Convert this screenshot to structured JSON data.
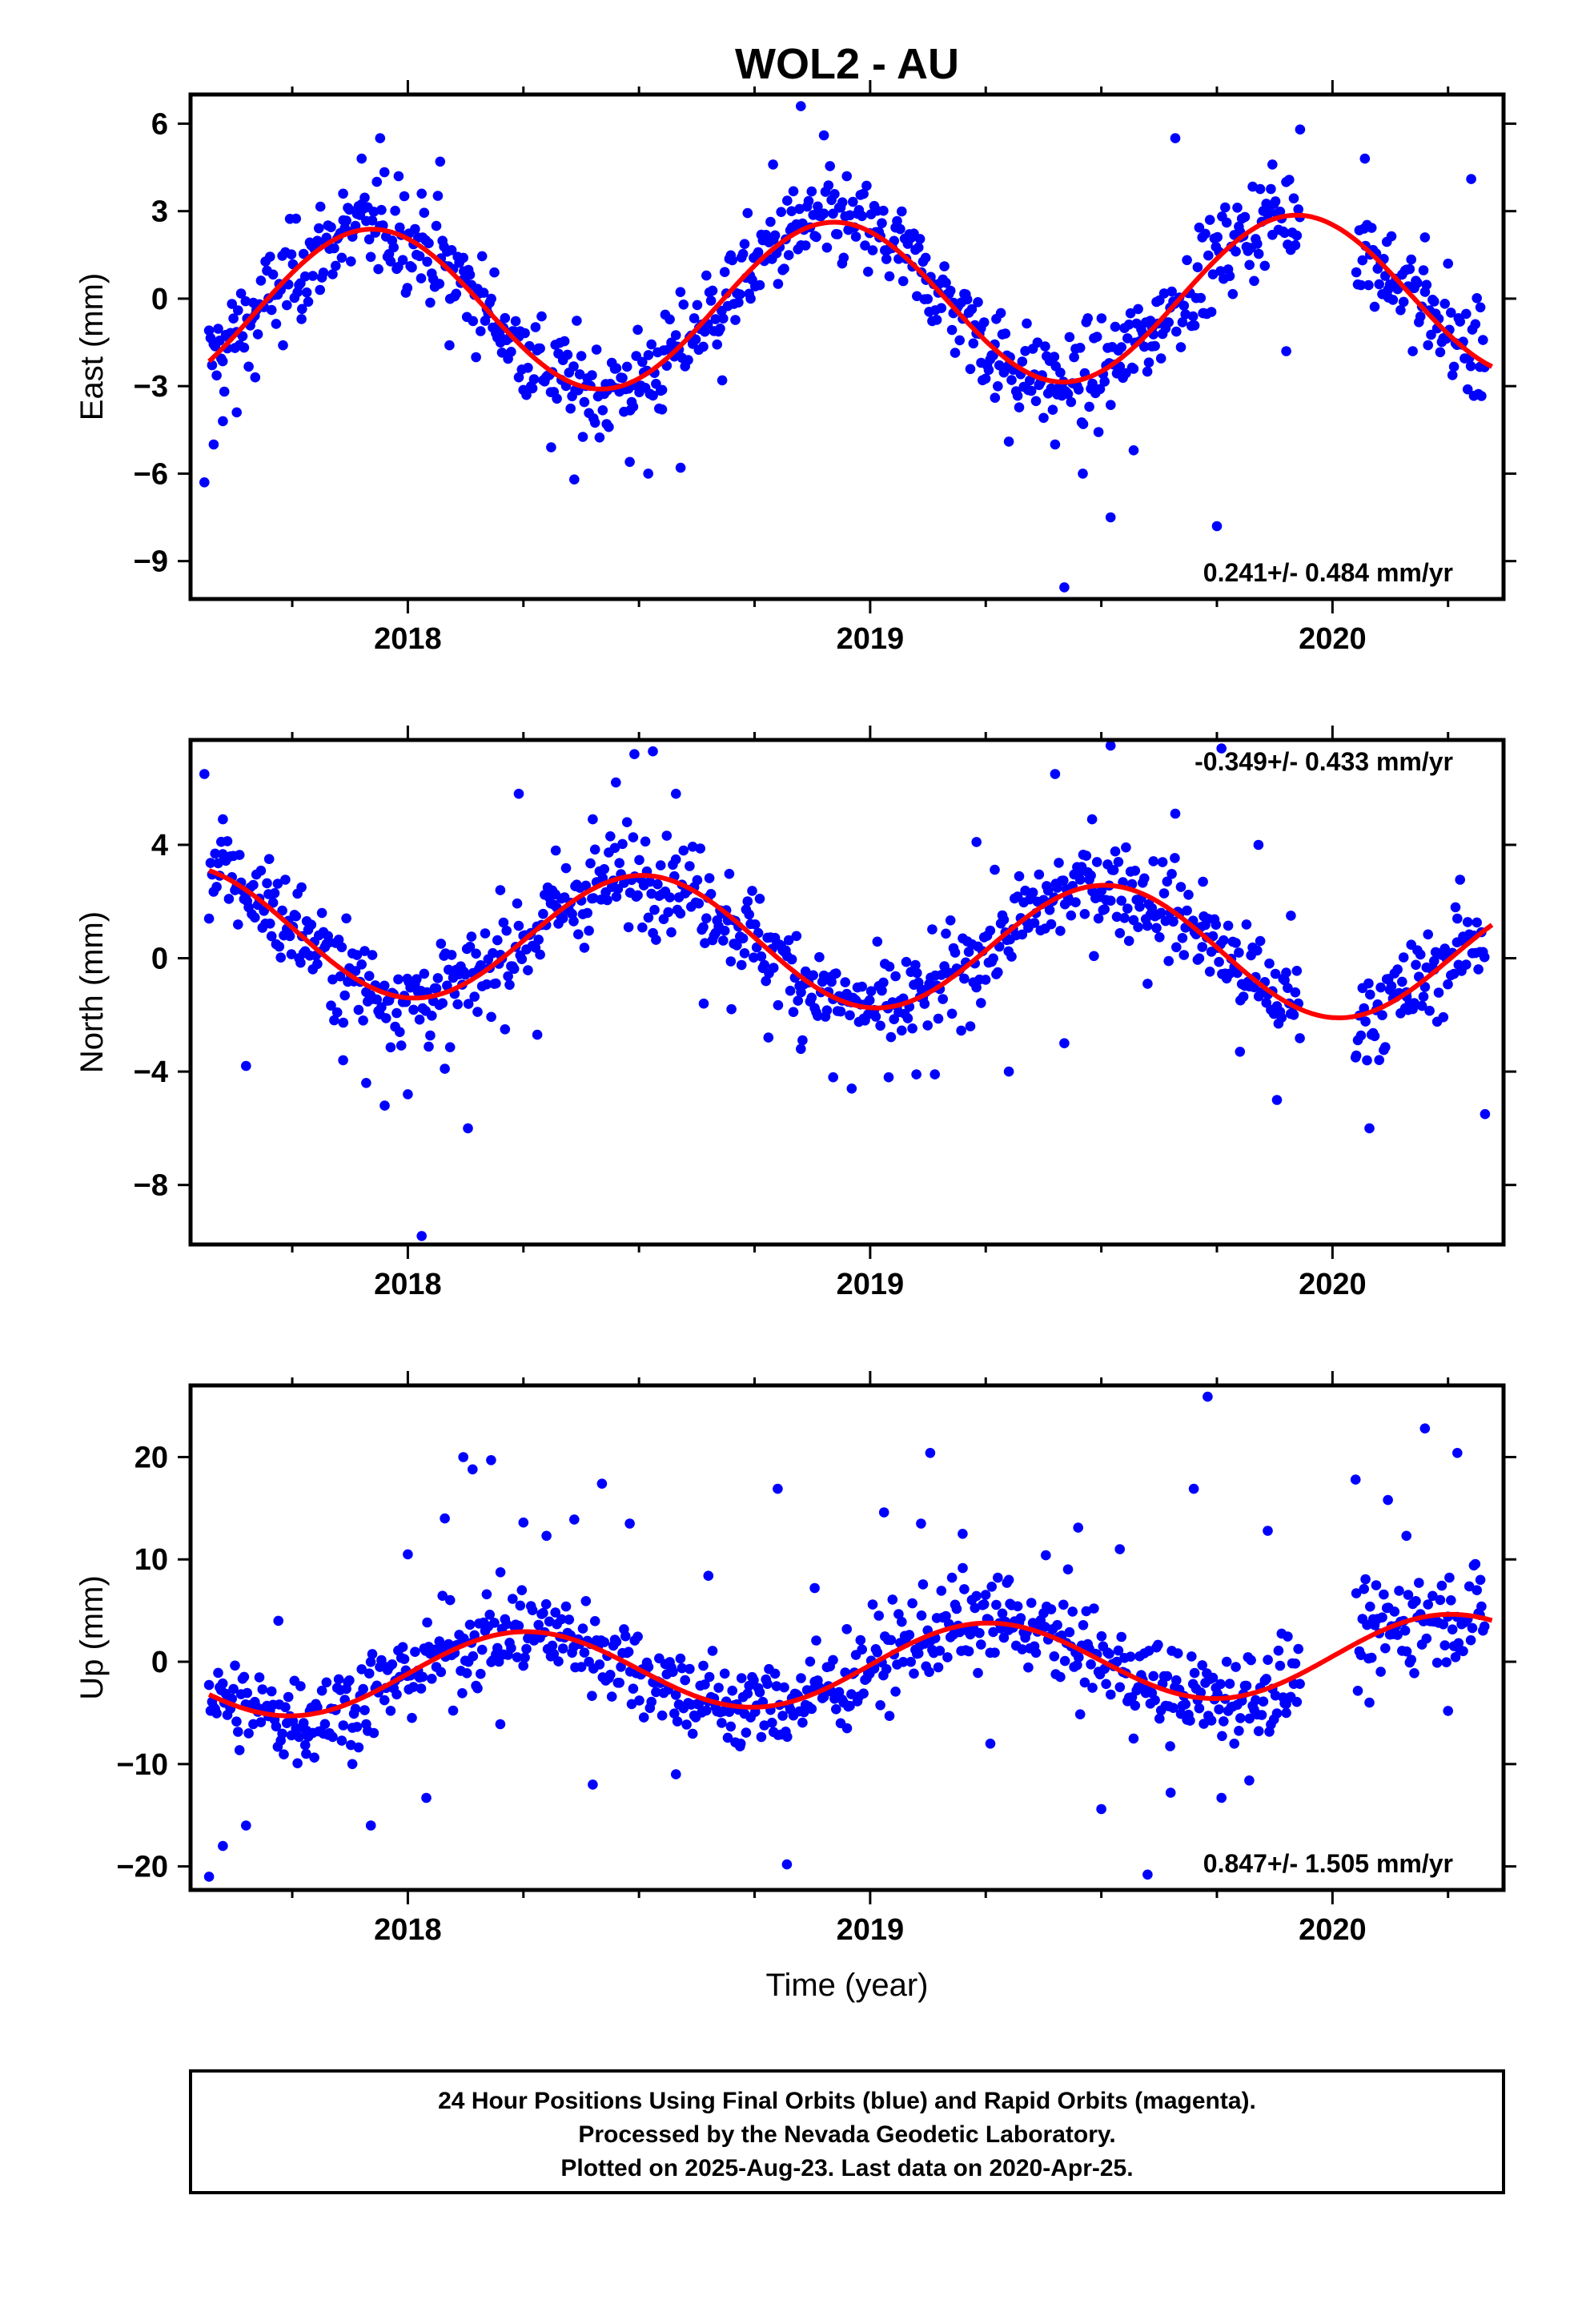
{
  "title": "WOL2 - AU",
  "xlabel": "Time (year)",
  "footer": {
    "line1": "24 Hour Positions Using Final Orbits (blue) and Rapid Orbits (magenta).",
    "line2": "Processed by the Nevada Geodetic Laboratory.",
    "line3": "Plotted on 2025-Aug-23. Last data on 2020-Apr-25."
  },
  "colors": {
    "points": "#0000ff",
    "fit": "#ff0000",
    "frame": "#000000"
  },
  "chart_data": [
    {
      "type": "scatter",
      "ylabel": "East (mm)",
      "rate_label": "0.241+/- 0.484 mm/yr",
      "xlim": [
        2017.53,
        2020.37
      ],
      "ylim": [
        -10.3,
        7.0
      ],
      "yticks": [
        -9,
        -6,
        -3,
        0,
        3,
        6
      ],
      "ytick_labels": [
        "−9",
        "−6",
        "−3",
        "0",
        "3",
        "6"
      ],
      "xticks": [
        2018,
        2019,
        2020
      ],
      "xtick_labels": [
        "2018",
        "2019",
        "2020"
      ],
      "fit": {
        "offset": -0.16,
        "rate": 0.241,
        "amp": 2.8,
        "peak": 2017.92,
        "t0": 2019.0
      },
      "points": [
        {
          "x": 2017.56,
          "y": -6.3
        },
        {
          "x": 2017.58,
          "y": -5.0
        },
        {
          "x": 2017.6,
          "y": -4.2
        },
        {
          "x": 2017.63,
          "y": -3.9
        },
        {
          "x": 2017.67,
          "y": -2.7
        },
        {
          "x": 2017.73,
          "y": -1.6
        },
        {
          "x": 2017.77,
          "y": -0.7
        },
        {
          "x": 2017.81,
          "y": 0.3
        },
        {
          "x": 2017.86,
          "y": 3.6
        },
        {
          "x": 2017.9,
          "y": 4.8
        },
        {
          "x": 2017.94,
          "y": 5.5
        },
        {
          "x": 2017.98,
          "y": 4.2
        },
        {
          "x": 2018.03,
          "y": 3.6
        },
        {
          "x": 2018.07,
          "y": 4.7
        },
        {
          "x": 2018.09,
          "y": -1.6
        },
        {
          "x": 2018.12,
          "y": 1.4
        },
        {
          "x": 2018.2,
          "y": -1.3
        },
        {
          "x": 2018.24,
          "y": -2.7
        },
        {
          "x": 2018.31,
          "y": -5.1
        },
        {
          "x": 2018.36,
          "y": -6.2
        },
        {
          "x": 2018.43,
          "y": -4.3
        },
        {
          "x": 2018.48,
          "y": -5.6
        },
        {
          "x": 2018.52,
          "y": -6.0
        },
        {
          "x": 2018.55,
          "y": -3.8
        },
        {
          "x": 2018.59,
          "y": -5.8
        },
        {
          "x": 2018.63,
          "y": -1.0
        },
        {
          "x": 2018.68,
          "y": -2.8
        },
        {
          "x": 2018.74,
          "y": 0.8
        },
        {
          "x": 2018.79,
          "y": 4.6
        },
        {
          "x": 2018.83,
          "y": 3.0
        },
        {
          "x": 2018.85,
          "y": 6.6
        },
        {
          "x": 2018.9,
          "y": 5.6
        },
        {
          "x": 2018.94,
          "y": 3.3
        },
        {
          "x": 2019.02,
          "y": 2.1
        },
        {
          "x": 2019.12,
          "y": 1.4
        },
        {
          "x": 2019.18,
          "y": -0.5
        },
        {
          "x": 2019.24,
          "y": -2.2
        },
        {
          "x": 2019.27,
          "y": -3.4
        },
        {
          "x": 2019.3,
          "y": -4.9
        },
        {
          "x": 2019.4,
          "y": -5.0
        },
        {
          "x": 2019.42,
          "y": -9.9
        },
        {
          "x": 2019.46,
          "y": -6.0
        },
        {
          "x": 2019.52,
          "y": -7.5
        },
        {
          "x": 2019.57,
          "y": -5.2
        },
        {
          "x": 2019.61,
          "y": -1.0
        },
        {
          "x": 2019.66,
          "y": 5.5
        },
        {
          "x": 2019.72,
          "y": -0.5
        },
        {
          "x": 2019.75,
          "y": -7.8
        },
        {
          "x": 2019.8,
          "y": 2.3
        },
        {
          "x": 2019.87,
          "y": 4.6
        },
        {
          "x": 2019.9,
          "y": -1.8
        },
        {
          "x": 2019.93,
          "y": 5.8
        },
        {
          "x": 2020.07,
          "y": 4.8
        },
        {
          "x": 2020.12,
          "y": 0.3
        },
        {
          "x": 2020.2,
          "y": 2.1
        },
        {
          "x": 2020.25,
          "y": 1.2
        },
        {
          "x": 2020.3,
          "y": 4.1
        },
        {
          "x": 2020.32,
          "y": -0.3
        }
      ]
    },
    {
      "type": "scatter",
      "ylabel": "North (mm)",
      "rate_label": "-0.349+/- 0.433 mm/yr",
      "xlim": [
        2017.53,
        2020.37
      ],
      "ylim": [
        -10.1,
        7.7
      ],
      "yticks": [
        -8,
        -4,
        0,
        4
      ],
      "ytick_labels": [
        "−8",
        "−4",
        "0",
        "4"
      ],
      "xticks": [
        2018,
        2019,
        2020
      ],
      "xtick_labels": [
        "2018",
        "2019",
        "2020"
      ],
      "fit": {
        "offset": 0.5,
        "rate": -0.349,
        "amp": 2.25,
        "peak": 2018.51,
        "t0": 2019.0
      },
      "points": [
        {
          "x": 2017.56,
          "y": 6.5
        },
        {
          "x": 2017.6,
          "y": 4.9
        },
        {
          "x": 2017.65,
          "y": -3.8
        },
        {
          "x": 2017.7,
          "y": 3.5
        },
        {
          "x": 2017.77,
          "y": 2.5
        },
        {
          "x": 2017.86,
          "y": -3.6
        },
        {
          "x": 2017.91,
          "y": -4.4
        },
        {
          "x": 2017.95,
          "y": -5.2
        },
        {
          "x": 2018.0,
          "y": -4.8
        },
        {
          "x": 2018.03,
          "y": -9.8
        },
        {
          "x": 2018.08,
          "y": -3.9
        },
        {
          "x": 2018.13,
          "y": -6.0
        },
        {
          "x": 2018.2,
          "y": 2.4
        },
        {
          "x": 2018.24,
          "y": 5.8
        },
        {
          "x": 2018.28,
          "y": -2.7
        },
        {
          "x": 2018.32,
          "y": 3.8
        },
        {
          "x": 2018.4,
          "y": 4.9
        },
        {
          "x": 2018.45,
          "y": 6.2
        },
        {
          "x": 2018.49,
          "y": 7.2
        },
        {
          "x": 2018.53,
          "y": 7.3
        },
        {
          "x": 2018.58,
          "y": 5.8
        },
        {
          "x": 2018.64,
          "y": -1.6
        },
        {
          "x": 2018.7,
          "y": -1.8
        },
        {
          "x": 2018.78,
          "y": -2.8
        },
        {
          "x": 2018.85,
          "y": -3.2
        },
        {
          "x": 2018.92,
          "y": -4.2
        },
        {
          "x": 2018.96,
          "y": -4.6
        },
        {
          "x": 2019.04,
          "y": -4.2
        },
        {
          "x": 2019.1,
          "y": -4.1
        },
        {
          "x": 2019.14,
          "y": -4.1
        },
        {
          "x": 2019.23,
          "y": 4.1
        },
        {
          "x": 2019.3,
          "y": -4.0
        },
        {
          "x": 2019.4,
          "y": 6.5
        },
        {
          "x": 2019.42,
          "y": -3.0
        },
        {
          "x": 2019.48,
          "y": 4.9
        },
        {
          "x": 2019.52,
          "y": 7.5
        },
        {
          "x": 2019.6,
          "y": -0.9
        },
        {
          "x": 2019.66,
          "y": 5.1
        },
        {
          "x": 2019.72,
          "y": 2.7
        },
        {
          "x": 2019.76,
          "y": 7.4
        },
        {
          "x": 2019.8,
          "y": -3.3
        },
        {
          "x": 2019.84,
          "y": 4.0
        },
        {
          "x": 2019.88,
          "y": -5.0
        },
        {
          "x": 2019.91,
          "y": 1.5
        },
        {
          "x": 2020.05,
          "y": -3.5
        },
        {
          "x": 2020.08,
          "y": -6.0
        },
        {
          "x": 2020.16,
          "y": -1.2
        },
        {
          "x": 2020.22,
          "y": -0.4
        },
        {
          "x": 2020.27,
          "y": 1.4
        },
        {
          "x": 2020.33,
          "y": -5.5
        }
      ]
    },
    {
      "type": "scatter",
      "ylabel": "Up (mm)",
      "rate_label": "0.847+/- 1.505 mm/yr",
      "xlim": [
        2017.53,
        2020.37
      ],
      "ylim": [
        -22.3,
        27.0
      ],
      "yticks": [
        -20,
        -10,
        0,
        10,
        20
      ],
      "ytick_labels": [
        "−20",
        "−10",
        "0",
        "10",
        "20"
      ],
      "xticks": [
        2018,
        2019,
        2020
      ],
      "xtick_labels": [
        "2018",
        "2019",
        "2020"
      ],
      "fit": {
        "offset": -0.33,
        "rate": 0.847,
        "amp": 3.9,
        "peak": 2018.25,
        "t0": 2019.0
      },
      "points": [
        {
          "x": 2017.57,
          "y": -21.0
        },
        {
          "x": 2017.6,
          "y": -18.0
        },
        {
          "x": 2017.65,
          "y": -16.0
        },
        {
          "x": 2017.72,
          "y": 4.0
        },
        {
          "x": 2017.78,
          "y": -9.0
        },
        {
          "x": 2017.88,
          "y": -10.0
        },
        {
          "x": 2017.92,
          "y": -16.0
        },
        {
          "x": 2017.96,
          "y": -0.5
        },
        {
          "x": 2018.0,
          "y": 10.5
        },
        {
          "x": 2018.04,
          "y": -13.3
        },
        {
          "x": 2018.08,
          "y": 14.0
        },
        {
          "x": 2018.12,
          "y": 20.0
        },
        {
          "x": 2018.14,
          "y": 18.8
        },
        {
          "x": 2018.18,
          "y": 19.7
        },
        {
          "x": 2018.2,
          "y": -6.1
        },
        {
          "x": 2018.25,
          "y": 13.6
        },
        {
          "x": 2018.3,
          "y": 12.3
        },
        {
          "x": 2018.36,
          "y": 13.9
        },
        {
          "x": 2018.4,
          "y": -12.0
        },
        {
          "x": 2018.42,
          "y": 17.4
        },
        {
          "x": 2018.48,
          "y": 13.5
        },
        {
          "x": 2018.58,
          "y": -11.0
        },
        {
          "x": 2018.65,
          "y": 8.4
        },
        {
          "x": 2018.72,
          "y": -8.0
        },
        {
          "x": 2018.8,
          "y": 16.9
        },
        {
          "x": 2018.82,
          "y": -19.8
        },
        {
          "x": 2018.88,
          "y": 7.2
        },
        {
          "x": 2018.95,
          "y": -6.5
        },
        {
          "x": 2019.03,
          "y": 14.6
        },
        {
          "x": 2019.11,
          "y": 13.5
        },
        {
          "x": 2019.13,
          "y": 20.4
        },
        {
          "x": 2019.2,
          "y": 12.5
        },
        {
          "x": 2019.26,
          "y": -8.0
        },
        {
          "x": 2019.3,
          "y": 8.0
        },
        {
          "x": 2019.38,
          "y": 10.4
        },
        {
          "x": 2019.45,
          "y": 13.1
        },
        {
          "x": 2019.5,
          "y": -14.4
        },
        {
          "x": 2019.54,
          "y": 11.0
        },
        {
          "x": 2019.6,
          "y": -20.8
        },
        {
          "x": 2019.65,
          "y": -12.8
        },
        {
          "x": 2019.7,
          "y": 16.9
        },
        {
          "x": 2019.73,
          "y": 25.9
        },
        {
          "x": 2019.76,
          "y": -13.3
        },
        {
          "x": 2019.82,
          "y": -11.6
        },
        {
          "x": 2019.86,
          "y": 12.8
        },
        {
          "x": 2019.9,
          "y": -5.0
        },
        {
          "x": 2020.05,
          "y": 17.8
        },
        {
          "x": 2020.08,
          "y": -4.0
        },
        {
          "x": 2020.12,
          "y": 15.8
        },
        {
          "x": 2020.16,
          "y": 12.3
        },
        {
          "x": 2020.2,
          "y": 22.8
        },
        {
          "x": 2020.25,
          "y": -4.8
        },
        {
          "x": 2020.27,
          "y": 20.4
        },
        {
          "x": 2020.32,
          "y": 8.0
        }
      ]
    }
  ]
}
